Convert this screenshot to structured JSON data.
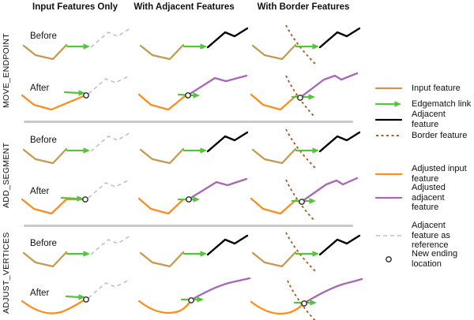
{
  "columns": [
    "Input Features Only",
    "With Adjacent Features",
    "With Border Features"
  ],
  "methods": [
    {
      "name": "MOVE_ENDPOINT",
      "rows": [
        {
          "label": "Before",
          "cells": [
            [
              "input",
              "link",
              "reference"
            ],
            [
              "input",
              "link",
              "adjacent"
            ],
            [
              "border",
              "input",
              "link",
              "adjacent"
            ]
          ]
        },
        {
          "label": "After",
          "cells": [
            [
              "adjusted_input",
              "link",
              "reference",
              "new_ending"
            ],
            [
              "adjusted_input",
              "link",
              "adjusted_adjacent",
              "new_ending"
            ],
            [
              "border",
              "adjusted_input",
              "link",
              "adjusted_adjacent",
              "new_ending"
            ]
          ]
        }
      ]
    },
    {
      "name": "ADD_SEGMENT",
      "rows": [
        {
          "label": "Before",
          "cells": [
            [
              "input",
              "link",
              "reference"
            ],
            [
              "input",
              "link",
              "adjacent"
            ],
            [
              "border",
              "input",
              "link",
              "adjacent"
            ]
          ]
        },
        {
          "label": "After",
          "cells": [
            [
              "adjusted_input",
              "link",
              "reference",
              "new_ending"
            ],
            [
              "adjusted_input",
              "link",
              "adjusted_adjacent",
              "new_ending"
            ],
            [
              "border",
              "adjusted_input",
              "link",
              "adjusted_adjacent",
              "new_ending"
            ]
          ]
        }
      ]
    },
    {
      "name": "ADJUST_VERTICES",
      "rows": [
        {
          "label": "Before",
          "cells": [
            [
              "input",
              "link",
              "reference"
            ],
            [
              "input",
              "link",
              "adjacent"
            ],
            [
              "border",
              "input",
              "link",
              "adjacent"
            ]
          ]
        },
        {
          "label": "After",
          "cells": [
            [
              "adjusted_input",
              "link",
              "reference",
              "new_ending"
            ],
            [
              "adjusted_input",
              "link",
              "adjusted_adjacent",
              "new_ending"
            ],
            [
              "border",
              "adjusted_input",
              "link",
              "adjusted_adjacent",
              "new_ending"
            ]
          ]
        }
      ]
    }
  ],
  "colors": {
    "input": "#C49A4E",
    "edgematch_link": "#55C33C",
    "adjacent": "#000000",
    "border": "#AE5B2A",
    "adjusted_input": "#FF8C1F",
    "adjusted_adjacent": "#A767B5",
    "reference": "#BFBFBF",
    "new_ending": "#2B2B2B"
  },
  "legend": {
    "items": [
      {
        "id": "input",
        "swatch": "line",
        "color_key": "input",
        "label": "Input feature"
      },
      {
        "id": "edgematch_link",
        "swatch": "arrow",
        "color_key": "edgematch_link",
        "label": "Edgematch link"
      },
      {
        "id": "adjacent",
        "swatch": "line",
        "color_key": "adjacent",
        "label": "Adjacent feature"
      },
      {
        "id": "border",
        "swatch": "dotted",
        "color_key": "border",
        "label": "Border feature"
      },
      {
        "id": "adjusted_input",
        "swatch": "line",
        "color_key": "adjusted_input",
        "label": "Adjusted input\nfeature"
      },
      {
        "id": "adjusted_adjacent",
        "swatch": "line",
        "color_key": "adjusted_adjacent",
        "label": "Adjusted adjacent\nfeature"
      },
      {
        "id": "reference",
        "swatch": "dashed",
        "color_key": "reference",
        "label": "Adjacent feature as\nreference"
      },
      {
        "id": "new_ending",
        "swatch": "circle",
        "color_key": "new_ending",
        "label": "New ending\nlocation"
      }
    ]
  }
}
